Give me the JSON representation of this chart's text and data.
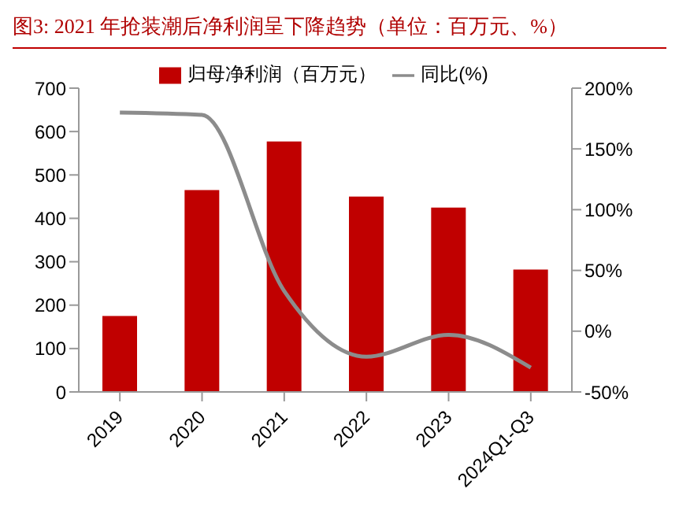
{
  "chart_data": {
    "type": "bar",
    "title": "图3:  2021 年抢装潮后净利润呈下降趋势（单位：百万元、%）",
    "categories": [
      "2019",
      "2020",
      "2021",
      "2022",
      "2023",
      "2024Q1-Q3"
    ],
    "series": [
      {
        "name": "归母净利润（百万元）",
        "color": "#c00000",
        "values": [
          175,
          465,
          577,
          450,
          425,
          282
        ]
      },
      {
        "name": "同比(%)",
        "type": "line",
        "axis": "y2",
        "color": "#8c8c8c",
        "values": [
          180,
          178,
          33,
          -21,
          -3,
          -30
        ]
      }
    ],
    "ylim": [
      0,
      700
    ],
    "yticks": [
      0,
      100,
      200,
      300,
      400,
      500,
      600,
      700
    ],
    "y2lim": [
      -50,
      200
    ],
    "y2ticks": [
      {
        "value": -50,
        "label": "-50%"
      },
      {
        "value": 0,
        "label": "0%"
      },
      {
        "value": 50,
        "label": "50%"
      },
      {
        "value": 100,
        "label": "100%"
      },
      {
        "value": 150,
        "label": "150%"
      },
      {
        "value": 200,
        "label": "200%"
      }
    ],
    "grid": false,
    "legend": "top",
    "marker": "none"
  }
}
